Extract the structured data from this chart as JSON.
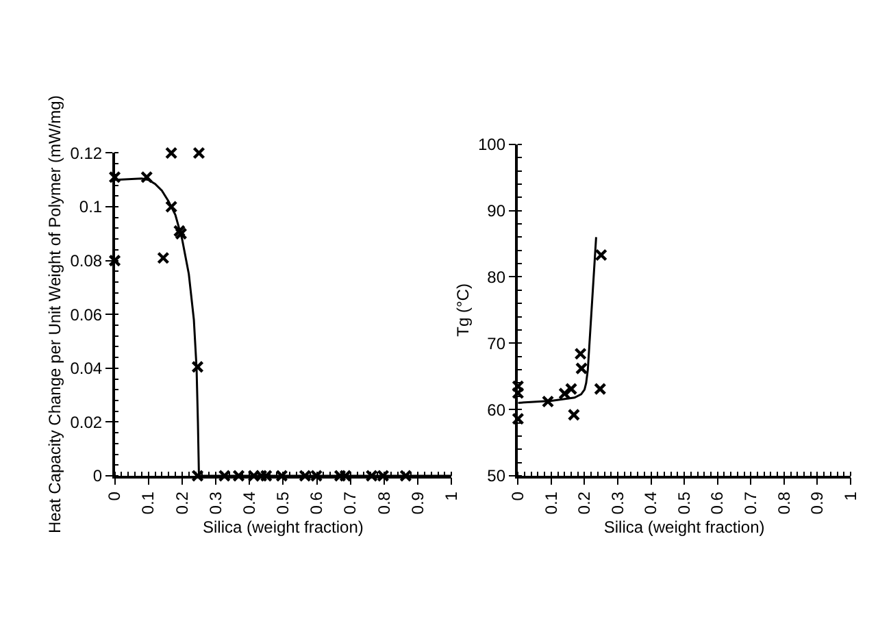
{
  "chart_data": [
    {
      "type": "scatter",
      "xlabel": "Silica (weight fraction)",
      "ylabel": "Heat Capacity Change per Unit Weight of Polymer (mW/mg)",
      "xlim": [
        0,
        1
      ],
      "ylim": [
        0,
        0.12
      ],
      "xticks": [
        0,
        0.1,
        0.2,
        0.3,
        0.4,
        0.5,
        0.6,
        0.7,
        0.8,
        0.9,
        1
      ],
      "yticks": [
        0,
        0.02,
        0.04,
        0.06,
        0.08,
        0.1,
        0.12
      ],
      "series": [
        {
          "marker": "cross",
          "color": "#000000",
          "x": [
            0,
            0,
            0.095,
            0.144,
            0.168,
            0.168,
            0.192,
            0.197,
            0.25,
            0.246,
            0.246,
            0.326,
            0.368,
            0.413,
            0.435,
            0.45,
            0.496,
            0.565,
            0.599,
            0.669,
            0.685,
            0.763,
            0.797,
            0.864
          ],
          "values": [
            0.111,
            0.08,
            0.111,
            0.081,
            0.12,
            0.1,
            0.091,
            0.09,
            0.12,
            0.0405,
            0,
            0,
            0,
            0,
            0,
            0,
            0,
            0,
            0,
            0,
            0,
            0,
            0,
            0
          ]
        },
        {
          "type": "line",
          "line_style": "solid",
          "color": "#000000",
          "x": [
            0,
            0.08,
            0.1,
            0.12,
            0.14,
            0.16,
            0.18,
            0.2,
            0.22,
            0.235,
            0.243,
            0.247,
            0.249,
            0.25,
            1
          ],
          "values": [
            0.11,
            0.1105,
            0.11,
            0.1085,
            0.106,
            0.102,
            0.097,
            0.088,
            0.075,
            0.058,
            0.04,
            0.02,
            0.007,
            0,
            0
          ]
        }
      ]
    },
    {
      "type": "scatter",
      "xlabel": "Silica (weight fraction)",
      "ylabel": "Tg (°C)",
      "xlim": [
        0,
        1
      ],
      "ylim": [
        50,
        100
      ],
      "xticks": [
        0,
        0.1,
        0.2,
        0.3,
        0.4,
        0.5,
        0.6,
        0.7,
        0.8,
        0.9,
        1
      ],
      "yticks": [
        50,
        60,
        70,
        80,
        90,
        100
      ],
      "series": [
        {
          "marker": "cross",
          "color": "#000000",
          "x": [
            0,
            0,
            0,
            0.09,
            0.14,
            0.16,
            0.168,
            0.188,
            0.191,
            0.25,
            0.247
          ],
          "values": [
            63.5,
            62.5,
            58.6,
            61.2,
            62.4,
            63.1,
            59.2,
            68.4,
            66.2,
            83.3,
            63.1
          ]
        },
        {
          "type": "line",
          "line_style": "solid",
          "color": "#000000",
          "x": [
            0,
            0.1,
            0.17,
            0.19,
            0.2,
            0.205,
            0.21,
            0.235
          ],
          "values": [
            61,
            61.3,
            61.8,
            62.3,
            63,
            64,
            66,
            86
          ]
        }
      ]
    }
  ]
}
